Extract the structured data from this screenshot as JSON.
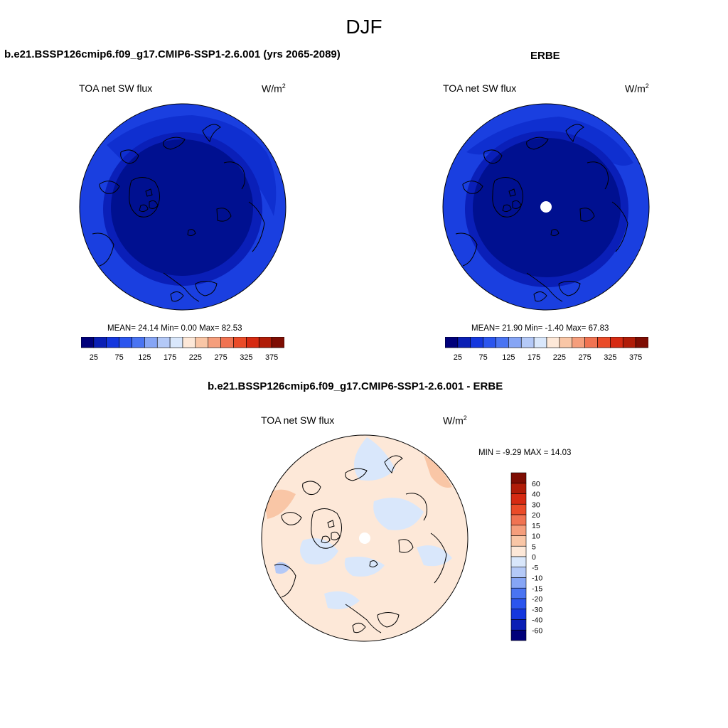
{
  "season": "DJF",
  "left_panel": {
    "case_title": "b.e21.BSSP126cmip6.f09_g17.CMIP6-SSP1-2.6.001 (yrs 2065-2089)",
    "variable": "TOA net SW flux",
    "units_base": "W/m",
    "units_exp": "2",
    "stats_text": "MEAN=  24.14  Min=   0.00  Max=  82.53"
  },
  "right_panel": {
    "case_title": "ERBE",
    "variable": "TOA net SW flux",
    "units_base": "W/m",
    "units_exp": "2",
    "stats_text": "MEAN=  21.90  Min=  -1.40  Max=  67.83"
  },
  "diff_panel": {
    "case_title": "b.e21.BSSP126cmip6.f09_g17.CMIP6-SSP1-2.6.001 - ERBE",
    "variable": "TOA net SW flux",
    "units_base": "W/m",
    "units_exp": "2",
    "minmax_text": "MIN =  -9.29 MAX =  14.03"
  },
  "field_colorbar": {
    "labels": [
      "25",
      "75",
      "125",
      "175",
      "225",
      "275",
      "325",
      "375"
    ],
    "colors": [
      "#00007a",
      "#0a1fb5",
      "#1437de",
      "#2b55ee",
      "#4a74f2",
      "#86a5f5",
      "#b4c9f7",
      "#d9e7fb",
      "#fde8d8",
      "#f9c6a6",
      "#f59e7c",
      "#f07352",
      "#ea4b28",
      "#d62a12",
      "#b01c08",
      "#7e0d03"
    ]
  },
  "diff_colorbar": {
    "labels": [
      "60",
      "40",
      "30",
      "20",
      "15",
      "10",
      "5",
      "0",
      "-5",
      "-10",
      "-15",
      "-20",
      "-30",
      "-40",
      "-60"
    ],
    "colors": [
      "#7e0d03",
      "#b01c08",
      "#d62a12",
      "#ea4b28",
      "#f07352",
      "#f59e7c",
      "#f9c6a6",
      "#fde8d8",
      "#d9e7fb",
      "#b4c9f7",
      "#86a5f5",
      "#4a74f2",
      "#2b55ee",
      "#1437de",
      "#0a1fb5",
      "#00007a"
    ]
  }
}
